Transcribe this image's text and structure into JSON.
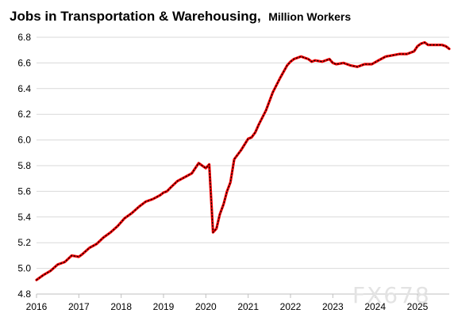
{
  "chart_data": {
    "type": "line",
    "title": "Jobs in Transportation & Warehousing,",
    "subtitle": "Million Workers",
    "xlabel": "",
    "ylabel": "",
    "ylim": [
      4.8,
      6.8
    ],
    "yticks": [
      "4.8",
      "5.0",
      "5.2",
      "5.4",
      "5.6",
      "5.8",
      "6.0",
      "6.2",
      "6.4",
      "6.6",
      "6.8"
    ],
    "xlim": [
      2016.0,
      2025.75
    ],
    "xticks": [
      "2016",
      "2017",
      "2018",
      "2019",
      "2020",
      "2021",
      "2022",
      "2023",
      "2024",
      "2025"
    ],
    "grid": true,
    "legend": "none",
    "series": [
      {
        "color": "#ff0000",
        "x": [
          2016.0,
          2016.17,
          2016.33,
          2016.5,
          2016.67,
          2016.83,
          2017.0,
          2017.08,
          2017.25,
          2017.42,
          2017.58,
          2017.75,
          2017.92,
          2018.08,
          2018.25,
          2018.42,
          2018.58,
          2018.75,
          2018.92,
          2019.0,
          2019.08,
          2019.17,
          2019.33,
          2019.5,
          2019.67,
          2019.83,
          2020.0,
          2020.08,
          2020.17,
          2020.25,
          2020.33,
          2020.42,
          2020.5,
          2020.58,
          2020.67,
          2020.83,
          2021.0,
          2021.08,
          2021.17,
          2021.25,
          2021.42,
          2021.58,
          2021.75,
          2021.92,
          2022.0,
          2022.08,
          2022.25,
          2022.42,
          2022.5,
          2022.58,
          2022.75,
          2022.92,
          2023.0,
          2023.08,
          2023.25,
          2023.42,
          2023.58,
          2023.75,
          2023.92,
          2024.08,
          2024.25,
          2024.42,
          2024.58,
          2024.75,
          2024.92,
          2025.0,
          2025.08,
          2025.17,
          2025.25,
          2025.42,
          2025.58,
          2025.67,
          2025.75
        ],
        "values": [
          4.91,
          4.95,
          4.98,
          5.03,
          5.05,
          5.1,
          5.09,
          5.11,
          5.16,
          5.19,
          5.24,
          5.28,
          5.33,
          5.39,
          5.43,
          5.48,
          5.52,
          5.54,
          5.57,
          5.59,
          5.6,
          5.63,
          5.68,
          5.71,
          5.74,
          5.82,
          5.78,
          5.81,
          5.28,
          5.31,
          5.42,
          5.5,
          5.6,
          5.67,
          5.85,
          5.92,
          6.01,
          6.02,
          6.06,
          6.12,
          6.23,
          6.37,
          6.48,
          6.58,
          6.61,
          6.63,
          6.65,
          6.63,
          6.61,
          6.62,
          6.61,
          6.63,
          6.6,
          6.59,
          6.6,
          6.58,
          6.57,
          6.59,
          6.59,
          6.62,
          6.65,
          6.66,
          6.67,
          6.67,
          6.69,
          6.73,
          6.75,
          6.76,
          6.74,
          6.74,
          6.74,
          6.73,
          6.71
        ]
      }
    ]
  },
  "watermark": "FX678"
}
